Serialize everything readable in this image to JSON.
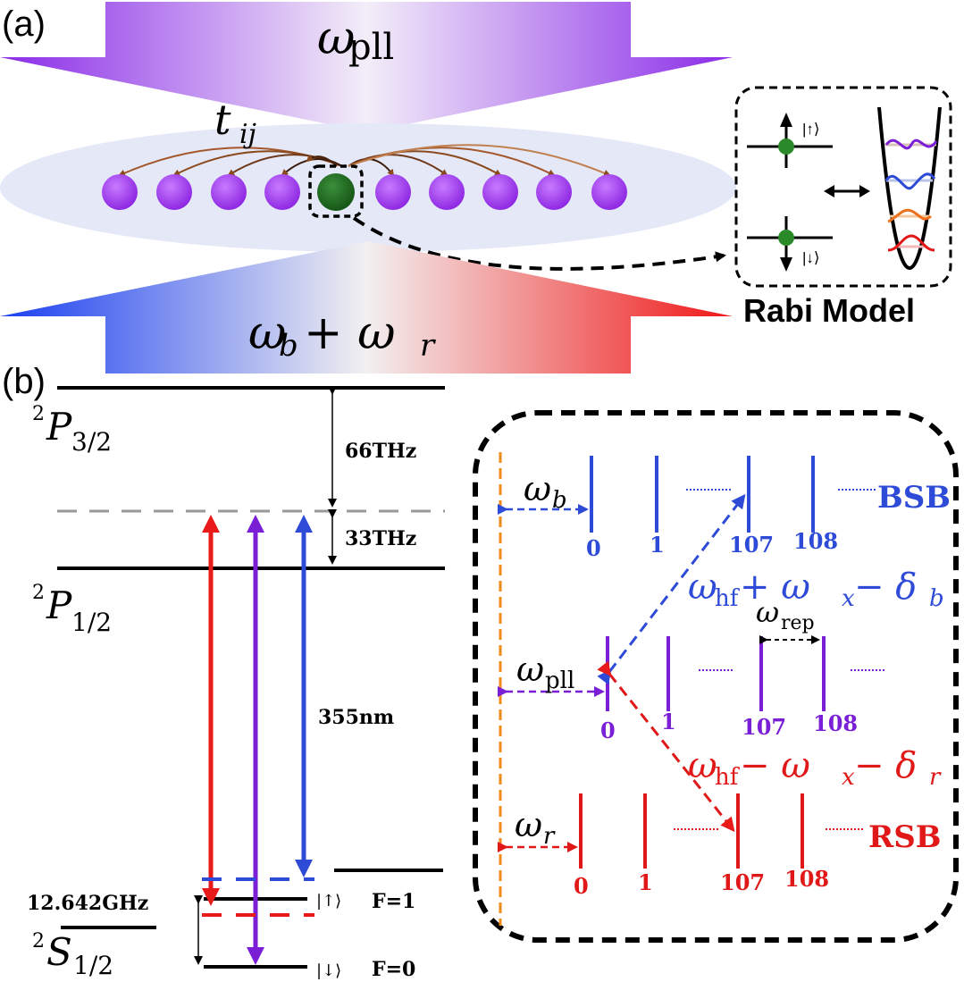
{
  "panel_a": {
    "label": "(a)",
    "top_beam_label": "ω",
    "top_beam_sub": "pll",
    "bottom_beam_label": "ω",
    "bottom_beam_sub_b": "b",
    "bottom_beam_plus": "+ ω",
    "bottom_beam_sub_r": "r",
    "hopping_label": "t",
    "hopping_sub": "ij",
    "rabi_model_label": "Rabi Model",
    "spin_up": "|↑⟩",
    "spin_down": "|↓⟩",
    "colors": {
      "ion": "#9b35e8",
      "central_ion": "#1e6b1e",
      "beam_top": "#9d3ee9",
      "beam_blue": "#1f46f0",
      "beam_red": "#f02020"
    }
  },
  "panel_b": {
    "label": "(b)",
    "level_P32": "P",
    "level_P32_sup": "2",
    "level_P32_sub": "3/2",
    "level_P12": "P",
    "level_P12_sup": "2",
    "level_P12_sub": "1/2",
    "level_S12": "S",
    "level_S12_sup": "2",
    "level_S12_sub": "1/2",
    "freq_66": "66THz",
    "freq_33": "33THz",
    "wavelength": "355nm",
    "hyperfine": "12.642GHz",
    "ket_up": "|↑⟩",
    "ket_down": "|↓⟩",
    "F1": "F=1",
    "F0": "F=0",
    "inset": {
      "bsb_label": "BSB",
      "rsb_label": "RSB",
      "omega_b": "ω",
      "omega_b_sub": "b",
      "omega_pll": "ω",
      "omega_pll_sub": "pll",
      "omega_r": "ω",
      "omega_r_sub": "r",
      "omega_rep": "ω",
      "omega_rep_sub": "rep",
      "blue_expr": "ω",
      "blue_expr_sub": "hf",
      "blue_expr_mid": " + ω",
      "blue_expr_x": "x",
      "blue_expr_minus": " − δ",
      "blue_expr_b": "b",
      "red_expr": "ω",
      "red_expr_sub": "hf",
      "red_expr_mid": " − ω",
      "red_expr_x": "x",
      "red_expr_minus": " − δ",
      "red_expr_r": "r",
      "comb_labels": [
        "0",
        "1",
        "107",
        "108"
      ],
      "colors": {
        "blue": "#2e4bd8",
        "purple": "#7a1fd6",
        "red": "#e01818",
        "orange": "#f08a1c"
      }
    }
  }
}
